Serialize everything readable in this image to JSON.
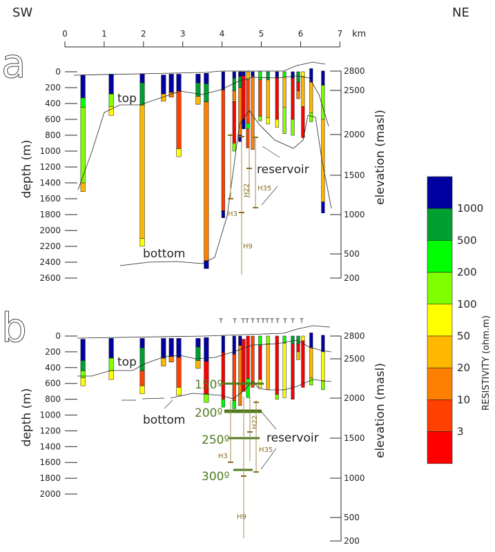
{
  "header": {
    "left_direction": "SW",
    "right_direction": "NE",
    "distance_unit": "km",
    "distance_ticks": [
      "0",
      "1",
      "2",
      "3",
      "4",
      "5",
      "6",
      "7"
    ]
  },
  "panels": [
    {
      "letter": "a",
      "depth_label": "depth (m)",
      "elevation_label": "elevation (masl)",
      "depth_ticks": [
        "0",
        "200",
        "400",
        "600",
        "800",
        "1000",
        "1200",
        "1400",
        "1600",
        "1800",
        "2000",
        "2200",
        "2400",
        "2600"
      ],
      "elevation_ticks": [
        "2800",
        "2500",
        "2000",
        "1500",
        "1000",
        "500",
        "200"
      ],
      "annotations": {
        "top": "top",
        "bottom": "bottom",
        "reservoir": "reservoir"
      },
      "wells": [
        "H3",
        "H9",
        "H22",
        "H35"
      ],
      "soundings": [
        {
          "x_km": 0.46,
          "layers": [
            [
              40,
              330,
              0
            ],
            [
              330,
              450,
              2
            ],
            [
              450,
              1400,
              3
            ],
            [
              1400,
              1510,
              5
            ]
          ]
        },
        {
          "x_km": 1.18,
          "layers": [
            [
              30,
              280,
              0
            ],
            [
              280,
              440,
              3
            ],
            [
              440,
              550,
              4
            ]
          ]
        },
        {
          "x_km": 1.97,
          "layers": [
            [
              30,
              140,
              0
            ],
            [
              140,
              420,
              1
            ],
            [
              420,
              2100,
              5
            ],
            [
              2100,
              2200,
              4
            ]
          ]
        },
        {
          "x_km": 2.51,
          "layers": [
            [
              40,
              280,
              0
            ],
            [
              280,
              370,
              5
            ]
          ]
        },
        {
          "x_km": 2.71,
          "layers": [
            [
              30,
              260,
              0
            ],
            [
              260,
              320,
              6
            ]
          ]
        },
        {
          "x_km": 2.9,
          "layers": [
            [
              30,
              240,
              0
            ],
            [
              240,
              970,
              7
            ],
            [
              970,
              1070,
              4
            ]
          ]
        },
        {
          "x_km": 3.39,
          "layers": [
            [
              30,
              140,
              0
            ],
            [
              140,
              310,
              1
            ],
            [
              310,
              410,
              5
            ]
          ]
        },
        {
          "x_km": 3.6,
          "layers": [
            [
              20,
              150,
              0
            ],
            [
              150,
              380,
              1
            ],
            [
              380,
              2380,
              6
            ],
            [
              2380,
              2480,
              0
            ]
          ]
        },
        {
          "x_km": 4.03,
          "layers": [
            [
              0,
              230,
              0
            ],
            [
              230,
              1750,
              7
            ],
            [
              1750,
              1840,
              0
            ]
          ]
        },
        {
          "x_km": 4.31,
          "layers": [
            [
              0,
              80,
              0
            ],
            [
              80,
              240,
              1
            ],
            [
              240,
              350,
              6
            ],
            [
              350,
              370,
              4
            ],
            [
              370,
              900,
              8
            ],
            [
              900,
              1000,
              3
            ]
          ]
        },
        {
          "x_km": 4.46,
          "layers": [
            [
              0,
              60,
              0
            ],
            [
              60,
              200,
              1
            ],
            [
              200,
              800,
              6
            ],
            [
              800,
              880,
              0
            ]
          ]
        },
        {
          "x_km": 4.55,
          "layers": [
            [
              0,
              50,
              0
            ],
            [
              50,
              600,
              8
            ],
            [
              600,
              720,
              0
            ]
          ]
        },
        {
          "x_km": 4.66,
          "layers": [
            [
              0,
              100,
              5
            ],
            [
              100,
              650,
              7
            ],
            [
              650,
              720,
              2
            ],
            [
              720,
              960,
              7
            ]
          ]
        },
        {
          "x_km": 4.78,
          "layers": [
            [
              0,
              60,
              0
            ],
            [
              60,
              980,
              6
            ]
          ]
        },
        {
          "x_km": 4.97,
          "layers": [
            [
              0,
              100,
              2
            ],
            [
              100,
              560,
              7
            ],
            [
              560,
              620,
              3
            ]
          ]
        },
        {
          "x_km": 5.17,
          "layers": [
            [
              0,
              100,
              1
            ],
            [
              100,
              580,
              5
            ],
            [
              580,
              660,
              4
            ]
          ]
        },
        {
          "x_km": 5.4,
          "layers": [
            [
              0,
              80,
              0
            ],
            [
              80,
              600,
              8
            ],
            [
              600,
              700,
              4
            ]
          ]
        },
        {
          "x_km": 5.59,
          "layers": [
            [
              0,
              70,
              2
            ],
            [
              70,
              450,
              5
            ],
            [
              450,
              780,
              3
            ]
          ]
        },
        {
          "x_km": 5.8,
          "layers": [
            [
              0,
              80,
              0
            ],
            [
              80,
              600,
              8
            ],
            [
              600,
              800,
              3
            ]
          ]
        },
        {
          "x_km": 5.94,
          "layers": [
            [
              0,
              130,
              1
            ],
            [
              130,
              240,
              8
            ],
            [
              240,
              340,
              6
            ]
          ]
        },
        {
          "x_km": 6.06,
          "layers": [
            [
              0,
              60,
              4
            ],
            [
              60,
              440,
              5
            ],
            [
              440,
              830,
              8
            ]
          ]
        },
        {
          "x_km": 6.27,
          "layers": [
            [
              -40,
              130,
              0
            ],
            [
              130,
              520,
              5
            ],
            [
              520,
              630,
              3
            ]
          ]
        },
        {
          "x_km": 6.57,
          "layers": [
            [
              -10,
              170,
              0
            ],
            [
              170,
              600,
              3
            ],
            [
              600,
              1640,
              5
            ],
            [
              1640,
              1780,
              0
            ]
          ]
        }
      ]
    },
    {
      "letter": "b",
      "depth_label": "depth (m)",
      "elevation_label": "elevation (masl)",
      "depth_ticks": [
        "0",
        "200",
        "400",
        "600",
        "800",
        "1000",
        "1200",
        "1400",
        "1600",
        "1800",
        "2000"
      ],
      "elevation_ticks": [
        "2800",
        "2500",
        "2000",
        "1500",
        "1000",
        "500",
        "200"
      ],
      "annotations": {
        "top": "top",
        "bottom": "bottom",
        "reservoir": "reservoir"
      },
      "wells": [
        "H3",
        "H9",
        "H22",
        "H35"
      ],
      "temperatures": [
        "150º",
        "200º",
        "250º",
        "300º"
      ],
      "soundings": [
        {
          "x_km": 0.46,
          "layers": [
            [
              40,
              310,
              0
            ],
            [
              310,
              440,
              1
            ],
            [
              440,
              530,
              3
            ],
            [
              530,
              630,
              4
            ]
          ]
        },
        {
          "x_km": 1.18,
          "layers": [
            [
              30,
              280,
              0
            ],
            [
              280,
              440,
              3
            ],
            [
              440,
              550,
              4
            ]
          ]
        },
        {
          "x_km": 1.97,
          "layers": [
            [
              30,
              150,
              0
            ],
            [
              150,
              440,
              1
            ],
            [
              440,
              630,
              7
            ],
            [
              630,
              730,
              4
            ]
          ]
        },
        {
          "x_km": 2.51,
          "layers": [
            [
              30,
              280,
              0
            ],
            [
              280,
              380,
              5
            ]
          ]
        },
        {
          "x_km": 2.71,
          "layers": [
            [
              30,
              260,
              0
            ],
            [
              260,
              330,
              6
            ]
          ]
        },
        {
          "x_km": 2.9,
          "layers": [
            [
              30,
              270,
              0
            ],
            [
              270,
              650,
              7
            ],
            [
              650,
              750,
              4
            ]
          ]
        },
        {
          "x_km": 3.39,
          "layers": [
            [
              30,
              140,
              0
            ],
            [
              140,
              310,
              1
            ],
            [
              310,
              410,
              5
            ]
          ]
        },
        {
          "x_km": 3.6,
          "layers": [
            [
              20,
              320,
              0
            ],
            [
              320,
              730,
              8
            ],
            [
              730,
              840,
              3
            ]
          ]
        },
        {
          "x_km": 4.03,
          "layers": [
            [
              0,
              210,
              0
            ],
            [
              210,
              800,
              8
            ],
            [
              800,
              900,
              2
            ]
          ]
        },
        {
          "x_km": 4.31,
          "layers": [
            [
              0,
              230,
              0
            ],
            [
              230,
              820,
              7
            ],
            [
              820,
              920,
              2
            ]
          ]
        },
        {
          "x_km": 4.46,
          "layers": [
            [
              0,
              120,
              0
            ],
            [
              120,
              880,
              6
            ]
          ]
        },
        {
          "x_km": 4.55,
          "layers": [
            [
              40,
              700,
              8
            ]
          ]
        },
        {
          "x_km": 4.66,
          "layers": [
            [
              0,
              540,
              8
            ],
            [
              540,
              780,
              2
            ]
          ]
        },
        {
          "x_km": 4.78,
          "layers": [
            [
              0,
              650,
              7
            ]
          ]
        },
        {
          "x_km": 4.97,
          "layers": [
            [
              0,
              120,
              2
            ],
            [
              120,
              550,
              8
            ],
            [
              550,
              650,
              4
            ]
          ]
        },
        {
          "x_km": 5.17,
          "layers": [
            [
              0,
              100,
              3
            ],
            [
              100,
              680,
              5
            ]
          ]
        },
        {
          "x_km": 5.4,
          "layers": [
            [
              0,
              740,
              8
            ],
            [
              740,
              800,
              3
            ]
          ]
        },
        {
          "x_km": 5.59,
          "layers": [
            [
              0,
              90,
              2
            ],
            [
              90,
              780,
              4
            ]
          ]
        },
        {
          "x_km": 5.8,
          "layers": [
            [
              0,
              100,
              1
            ],
            [
              100,
              800,
              8
            ]
          ]
        },
        {
          "x_km": 5.94,
          "layers": [
            [
              0,
              100,
              1
            ],
            [
              100,
              200,
              8
            ],
            [
              200,
              300,
              5
            ]
          ]
        },
        {
          "x_km": 6.06,
          "layers": [
            [
              0,
              60,
              4
            ],
            [
              60,
              650,
              8
            ]
          ]
        },
        {
          "x_km": 6.27,
          "layers": [
            [
              -40,
              150,
              0
            ],
            [
              150,
              530,
              5
            ],
            [
              530,
              620,
              3
            ]
          ]
        },
        {
          "x_km": 6.57,
          "layers": [
            [
              -10,
              200,
              0
            ],
            [
              200,
              570,
              4
            ],
            [
              570,
              680,
              3
            ]
          ]
        }
      ]
    }
  ],
  "legend": {
    "title": "RESISTIVITY (ohm.m)",
    "boundary_labels": [
      "1000",
      "500",
      "200",
      "100",
      "50",
      "20",
      "10",
      "3"
    ],
    "colors": [
      "#0000a0",
      "#00a030",
      "#00ff00",
      "#80ff00",
      "#ffff00",
      "#ffb800",
      "#ff8000",
      "#ff4000",
      "#ff0000"
    ]
  }
}
